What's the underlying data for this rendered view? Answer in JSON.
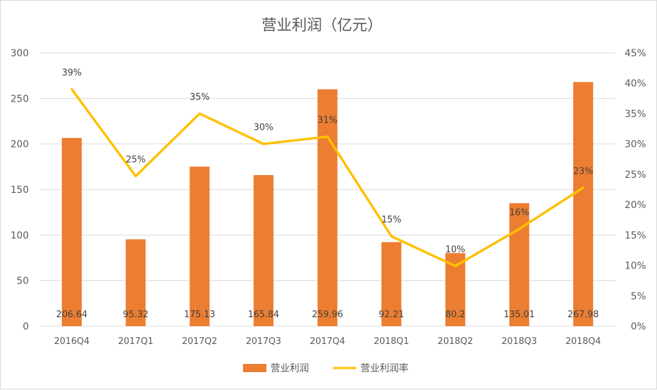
{
  "chart_data": {
    "type": "bar+line",
    "title": "营业利润（亿元）",
    "categories": [
      "2016Q4",
      "2017Q1",
      "2017Q2",
      "2017Q3",
      "2017Q4",
      "2018Q1",
      "2018Q2",
      "2018Q3",
      "2018Q4"
    ],
    "series": [
      {
        "name": "营业利润",
        "type": "bar",
        "axis": "left",
        "color": "#ED7D31",
        "values": [
          206.64,
          95.32,
          175.13,
          165.84,
          259.96,
          92.21,
          80.2,
          135.01,
          267.98
        ],
        "labels": [
          "206.64",
          "95.32",
          "175.13",
          "165.84",
          "259.96",
          "92.21",
          "80.2",
          "135.01",
          "267.98"
        ]
      },
      {
        "name": "营业利润率",
        "type": "line",
        "axis": "right",
        "color": "#FFC000",
        "values": [
          0.39,
          0.247,
          0.35,
          0.3,
          0.312,
          0.148,
          0.099,
          0.16,
          0.228
        ],
        "labels": [
          "39%",
          "25%",
          "35%",
          "30%",
          "31%",
          "15%",
          "10%",
          "16%",
          "23%"
        ]
      }
    ],
    "y_left": {
      "min": 0,
      "max": 300,
      "ticks": [
        "0",
        "50",
        "100",
        "150",
        "200",
        "250",
        "300"
      ]
    },
    "y_right": {
      "min": 0,
      "max": 0.45,
      "ticks": [
        "0%",
        "5%",
        "10%",
        "15%",
        "20%",
        "25%",
        "30%",
        "35%",
        "40%",
        "45%"
      ]
    },
    "grid": true,
    "legend_position": "bottom",
    "legend": [
      "营业利润",
      "营业利润率"
    ],
    "grid_color": "#d9d9d9"
  }
}
